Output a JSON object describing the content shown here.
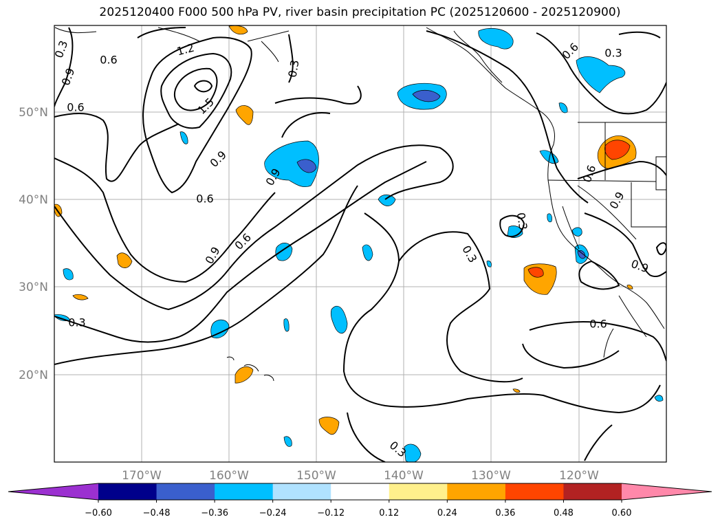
{
  "title": "2025120400 F000 500 hPa PV, river basin precipitation PC (2025120600 - 2025120900)",
  "map": {
    "lon_range": [
      -180,
      -110
    ],
    "lat_range": [
      10,
      60
    ],
    "lat_labels": [
      "20°N",
      "30°N",
      "40°N",
      "50°N"
    ],
    "lon_labels": [
      "170°W",
      "160°W",
      "150°W",
      "140°W",
      "130°W",
      "120°W"
    ],
    "gridlines": true,
    "contour_variable": "500 hPa PV",
    "contour_labels": [
      "0.3",
      "0.6",
      "0.9",
      "1.2",
      "1.5",
      "0.9",
      "0.6",
      "0.3",
      "0.6",
      "0.9",
      "0.3",
      "0.6",
      "0.6",
      "0.9",
      "0.3",
      "0.3",
      "0.3",
      "0.6",
      "0.3",
      "0.9",
      "0.6",
      "0.9"
    ],
    "fill_variable": "river basin precipitation PC"
  },
  "colorbar": {
    "ticks": [
      "−0.60",
      "−0.48",
      "−0.36",
      "−0.24",
      "−0.12",
      "0.12",
      "0.24",
      "0.36",
      "0.48",
      "0.60"
    ],
    "colors": [
      "#9b30d0",
      "#00008b",
      "#3a5fcd",
      "#00bfff",
      "#b0e2ff",
      "#ffffff",
      "#fff08c",
      "#ffa500",
      "#ff4500",
      "#b22222",
      "#ff88aa"
    ],
    "extend": "both"
  },
  "palette": {
    "neg_light": "#00bfff",
    "neg_dark": "#3a5fcd",
    "pos_light": "#ffa500",
    "pos_dark": "#ff4500"
  }
}
